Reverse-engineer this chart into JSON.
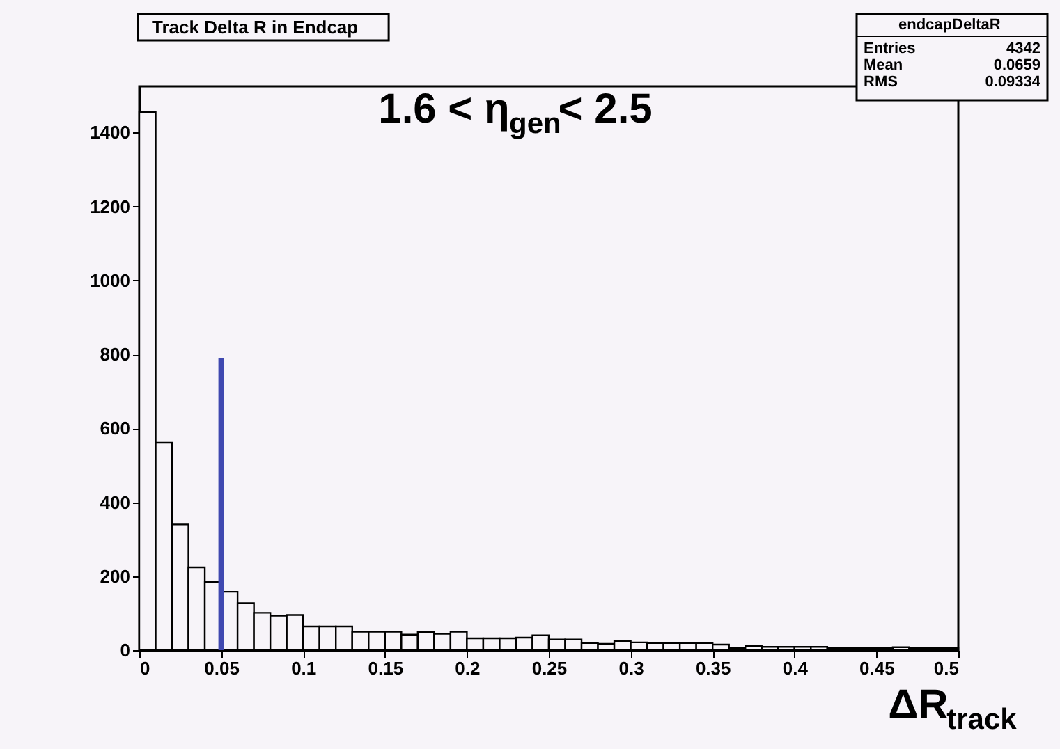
{
  "chart_data": {
    "type": "histogram",
    "title": "Track Delta R in Endcap",
    "xlabel": "ΔR$_{track}$",
    "bins": [
      0,
      0.01,
      0.02,
      0.03,
      0.04,
      0.05,
      0.06,
      0.07,
      0.08,
      0.09,
      0.1,
      0.11,
      0.12,
      0.13,
      0.14,
      0.15,
      0.16,
      0.17,
      0.18,
      0.19,
      0.2,
      0.21,
      0.22,
      0.23,
      0.24,
      0.25,
      0.26,
      0.27,
      0.28,
      0.29,
      0.3,
      0.31,
      0.32,
      0.33,
      0.34,
      0.35,
      0.36,
      0.37,
      0.38,
      0.39,
      0.4,
      0.41,
      0.42,
      0.43,
      0.44,
      0.45,
      0.46,
      0.47,
      0.48,
      0.49,
      0.5
    ],
    "values": [
      1455,
      561,
      340,
      224,
      184,
      158,
      127,
      101,
      93,
      95,
      64,
      64,
      64,
      50,
      50,
      50,
      42,
      49,
      44,
      50,
      32,
      32,
      32,
      34,
      40,
      29,
      29,
      19,
      17,
      25,
      21,
      19,
      19,
      19,
      19,
      15,
      6,
      11,
      9,
      9,
      9,
      9,
      6,
      6,
      6,
      6,
      8,
      6,
      6,
      6
    ],
    "color": "#000000",
    "series": [
      {
        "type": "line",
        "color": "#3f48b0",
        "x": [
          0.05,
          0.05
        ],
        "values": [
          0,
          790
        ]
      }
    ],
    "annotations": [
      "1.6 < η$_{gen}$< 2.5",
      "endcapDeltaR",
      "Entries 4342",
      "Mean 0.0659",
      "RMS 0.09334"
    ],
    "xlim": [
      0,
      0.5
    ],
    "xticks": [
      0,
      0.05,
      0.1,
      0.15,
      0.2,
      0.25,
      0.3,
      0.35,
      0.4,
      0.45,
      0.5
    ],
    "ylim": [
      0,
      1525
    ],
    "yticks": [
      0,
      200,
      400,
      600,
      800,
      1000,
      1200,
      1400
    ],
    "grid": false
  }
}
